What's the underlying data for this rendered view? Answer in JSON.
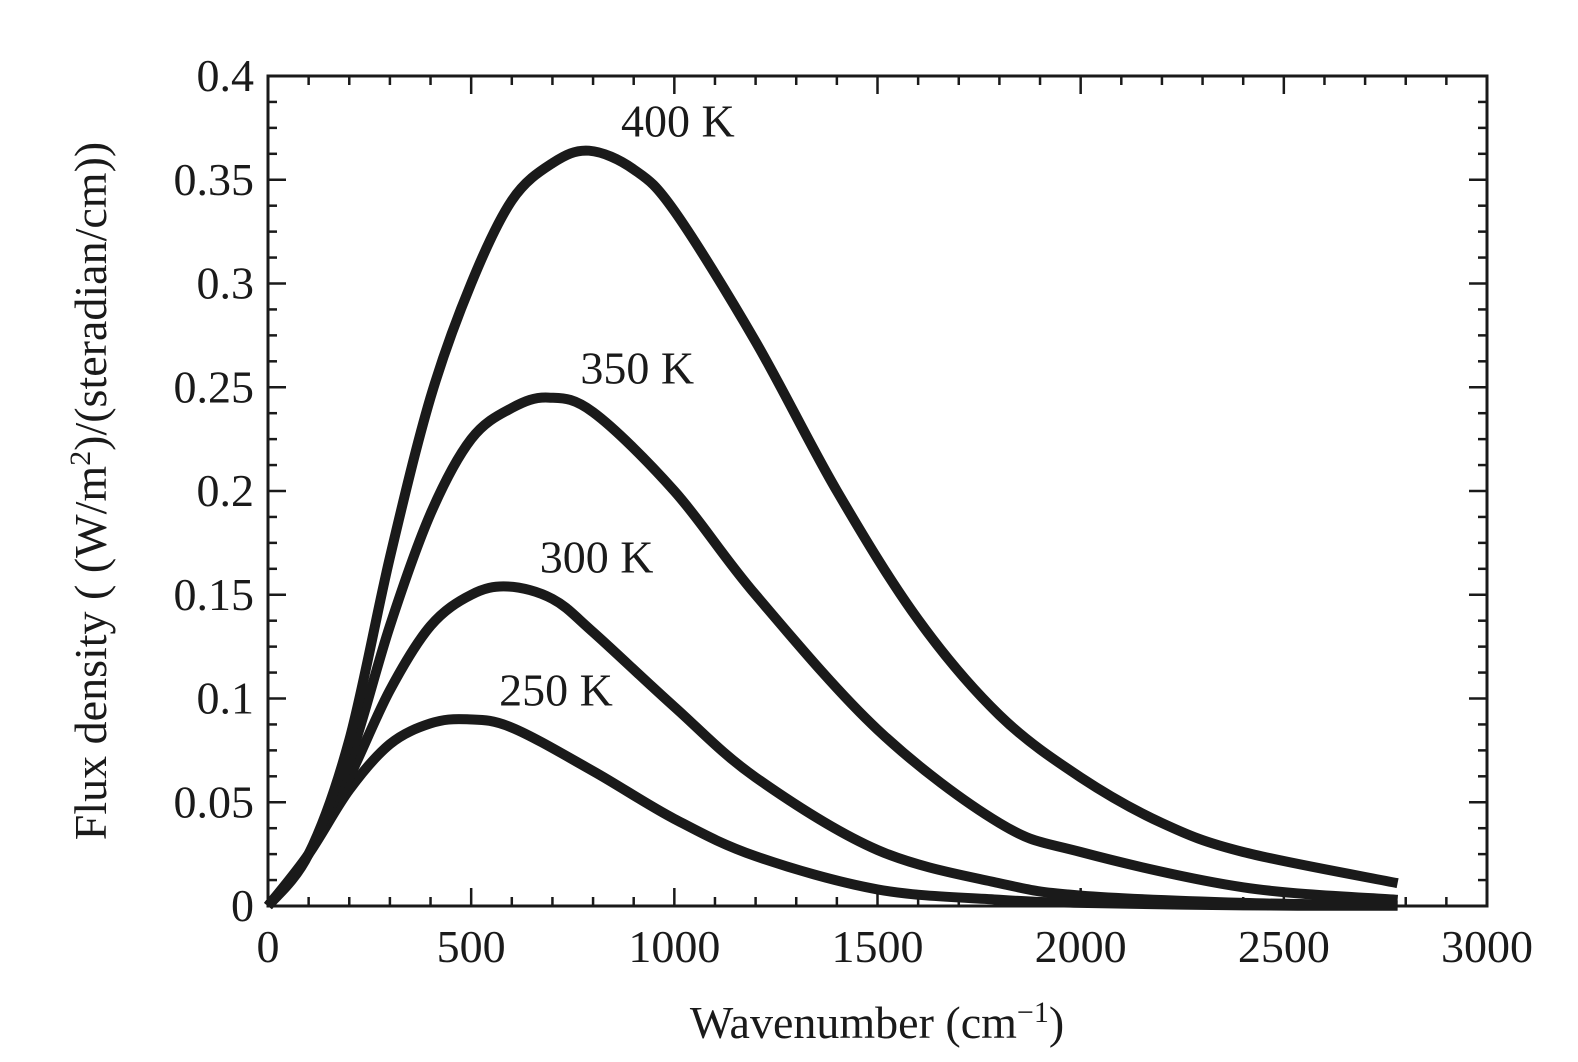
{
  "chart_data": {
    "type": "line",
    "title": "",
    "xlabel": "Wavenumber (cm",
    "xlabel_sup": "−1",
    "xlabel_end": ")",
    "ylabel": "Flux density ( (W/m",
    "ylabel_sup": "2",
    "ylabel_end": ")/(steradian/cm))",
    "xlim": [
      0,
      3000
    ],
    "ylim": [
      0,
      0.4
    ],
    "xticks": [
      0,
      500,
      1000,
      1500,
      2000,
      2500,
      3000
    ],
    "xtick_labels": [
      "0",
      "500",
      "1000",
      "1500",
      "2000",
      "2500",
      "3000"
    ],
    "yticks": [
      0,
      0.05,
      0.1,
      0.15,
      0.2,
      0.25,
      0.3,
      0.35,
      0.4
    ],
    "ytick_labels": [
      "0",
      "0.05",
      "0.1",
      "0.15",
      "0.2",
      "0.25",
      "0.3",
      "0.35",
      "0.4"
    ],
    "x_minor_step": 100,
    "y_minor_step": 0.0125,
    "grid": false,
    "line_color": "#1a1a1a",
    "series": [
      {
        "name": "250 K",
        "x": [
          0,
          100,
          200,
          300,
          400,
          490,
          600,
          800,
          1000,
          1200,
          1500,
          1800,
          2000,
          2400,
          2780
        ],
        "values": [
          0,
          0.025,
          0.056,
          0.078,
          0.088,
          0.09,
          0.086,
          0.065,
          0.042,
          0.024,
          0.008,
          0.003,
          0.0015,
          0.0003,
          0.0001
        ]
      },
      {
        "name": "300 K",
        "x": [
          0,
          100,
          200,
          300,
          400,
          500,
          590,
          700,
          800,
          1000,
          1200,
          1500,
          1800,
          2000,
          2400,
          2780
        ],
        "values": [
          0,
          0.025,
          0.062,
          0.104,
          0.135,
          0.15,
          0.154,
          0.148,
          0.132,
          0.096,
          0.062,
          0.027,
          0.011,
          0.005,
          0.0015,
          0.0004
        ]
      },
      {
        "name": "350 K",
        "x": [
          0,
          100,
          200,
          300,
          400,
          500,
          600,
          690,
          800,
          1000,
          1200,
          1500,
          1800,
          2000,
          2400,
          2780
        ],
        "values": [
          0,
          0.025,
          0.07,
          0.135,
          0.189,
          0.225,
          0.24,
          0.245,
          0.238,
          0.2,
          0.15,
          0.085,
          0.04,
          0.026,
          0.009,
          0.003
        ]
      },
      {
        "name": "400 K",
        "x": [
          0,
          100,
          200,
          300,
          400,
          500,
          600,
          700,
          790,
          900,
          1000,
          1200,
          1400,
          1600,
          1800,
          2000,
          2200,
          2400,
          2780
        ],
        "values": [
          0,
          0.025,
          0.08,
          0.168,
          0.245,
          0.3,
          0.34,
          0.358,
          0.364,
          0.355,
          0.335,
          0.272,
          0.2,
          0.138,
          0.092,
          0.062,
          0.04,
          0.026,
          0.011
        ]
      }
    ],
    "annotations": [
      {
        "text": "400 K",
        "series": "400 K"
      },
      {
        "text": "350 K",
        "series": "350 K"
      },
      {
        "text": "300 K",
        "series": "300 K"
      },
      {
        "text": "250 K",
        "series": "250 K"
      }
    ]
  }
}
